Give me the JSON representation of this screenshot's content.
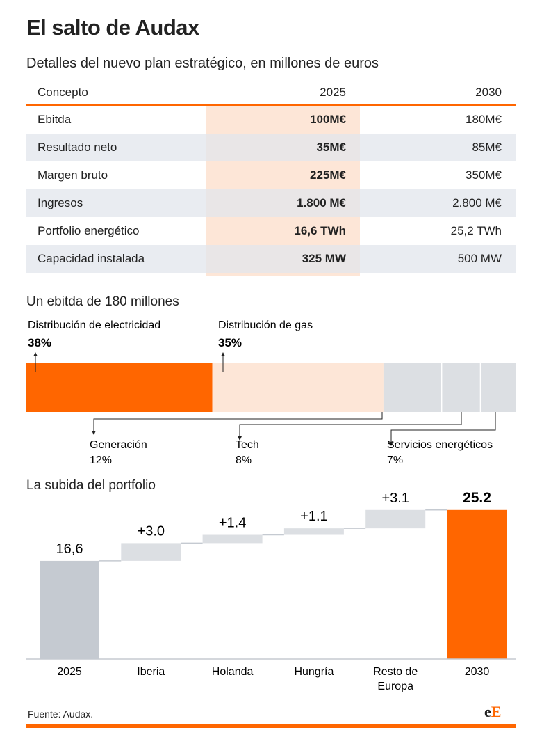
{
  "title": "El salto de Audax",
  "subtitle": "Detalles del nuevo plan estratégico, en millones de euros",
  "table": {
    "headers": [
      "Concepto",
      "2025",
      "2030"
    ],
    "rows": [
      [
        "Ebitda",
        "100M€",
        "180M€"
      ],
      [
        "Resultado neto",
        "35M€",
        "85M€"
      ],
      [
        "Margen bruto",
        "225M€",
        "350M€"
      ],
      [
        "Ingresos",
        "1.800 M€",
        "2.800 M€"
      ],
      [
        "Portfolio energético",
        "16,6 TWh",
        "25,2 TWh"
      ],
      [
        "Capacidad instalada",
        "325 MW",
        "500 MW"
      ]
    ]
  },
  "colors": {
    "accent": "#ff6600",
    "highlight": "#fde6d7",
    "grey": "#c5cad1",
    "light_grey": "#dcdfe3"
  },
  "chart_data": [
    {
      "type": "bar",
      "subtype": "stacked-100",
      "title": "Un ebitda de 180 millones",
      "categories": [
        "Distribución de electricidad",
        "Distribución de gas",
        "Generación",
        "Tech",
        "Servicios energéticos"
      ],
      "values": [
        38,
        35,
        12,
        8,
        7
      ],
      "labels": [
        "38%",
        "35%",
        "12%",
        "8%",
        "7%"
      ]
    },
    {
      "type": "bar",
      "subtype": "waterfall",
      "title": "La subida del portfolio",
      "categories": [
        "2025",
        "Iberia",
        "Holanda",
        "Hungría",
        "Resto de Europa",
        " 2030"
      ],
      "values": [
        16.6,
        3.0,
        1.4,
        1.1,
        3.1,
        25.2
      ],
      "labels": [
        "16,6",
        "+3.0",
        "+1.4",
        "+1.1",
        "+3.1",
        "25.2"
      ],
      "xlabels": [
        "2025",
        "Iberia",
        "Holanda",
        "Hungría",
        "Resto de",
        "Europa",
        "2030"
      ]
    }
  ],
  "source": "Fuente: Audax.",
  "logo": "eE"
}
